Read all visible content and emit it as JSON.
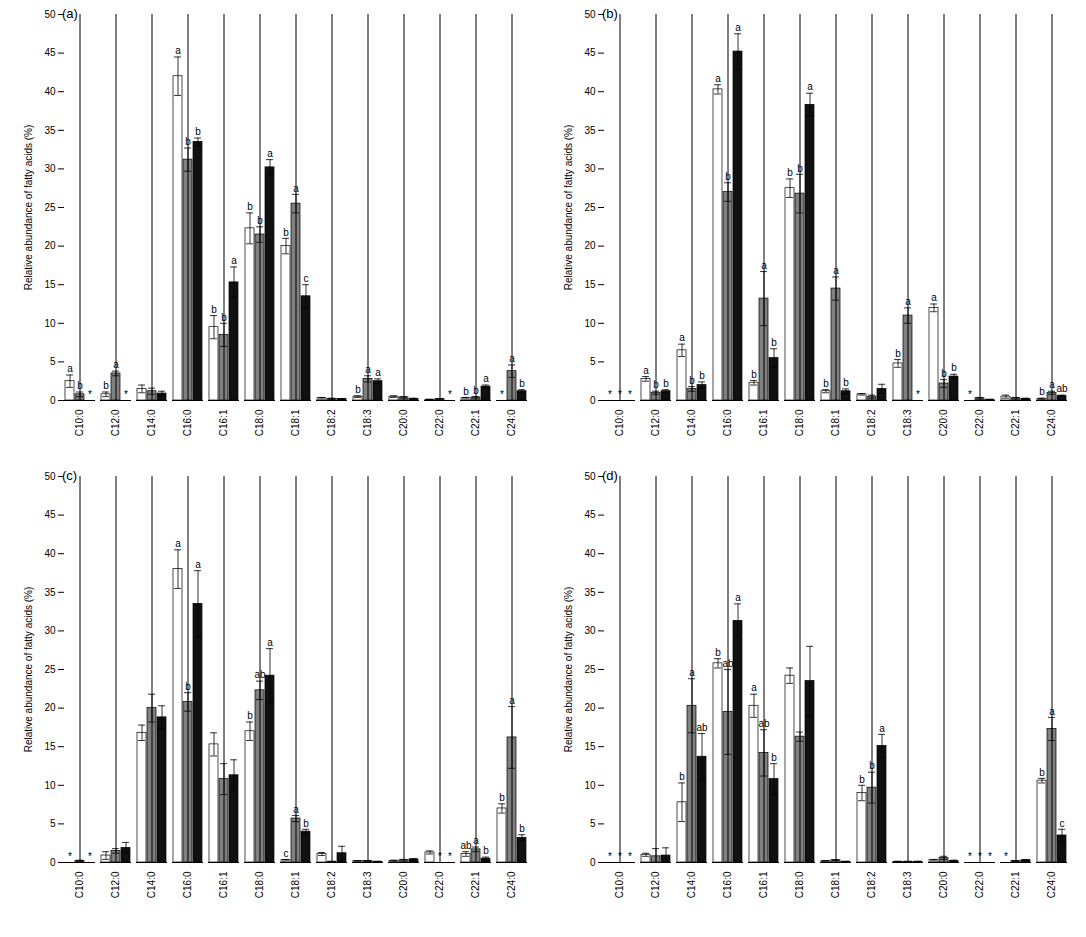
{
  "chart_data": [
    {
      "type": "bar",
      "title": "(a)",
      "y_label": "Relative abundance of fatty acids (%)",
      "categories": [
        "C10:0",
        "C12:0",
        "C14:0",
        "C16:0",
        "C16:1",
        "C18:0",
        "C18:1",
        "C18:2",
        "C18:3",
        "C20:0",
        "C22:0",
        "C22:1",
        "C24:0"
      ],
      "ylim": [
        0,
        50
      ],
      "yticks": [
        0,
        5,
        10,
        15,
        20,
        25,
        30,
        35,
        40,
        45,
        50
      ],
      "series": [
        {
          "color": "#ffffff",
          "values": [
            2.5,
            0.8,
            1.5,
            42,
            9.5,
            22.3,
            20,
            0.3,
            0.5,
            0.5,
            0.1,
            0.3,
            0
          ],
          "errors": [
            0.8,
            0.3,
            0.5,
            2.5,
            1.5,
            2,
            1,
            0.1,
            0.1,
            0.1,
            0.05,
            0.1,
            0
          ],
          "letters": [
            "a",
            "b",
            null,
            "a",
            "b",
            "b",
            "b",
            null,
            "b",
            null,
            null,
            "b",
            "*"
          ]
        },
        {
          "color": "#808080",
          "values": [
            0.8,
            3.5,
            1.2,
            31.2,
            8.5,
            21.5,
            25.5,
            0.2,
            2.8,
            0.4,
            0.2,
            0.4,
            3.8
          ],
          "errors": [
            0.3,
            0.3,
            0.4,
            1.5,
            1.5,
            1,
            1.2,
            0.1,
            0.4,
            0.1,
            0.05,
            0.1,
            0.8
          ],
          "letters": [
            "b",
            "a",
            null,
            "b",
            "b",
            "b",
            "a",
            null,
            "a",
            null,
            null,
            "b",
            "a"
          ]
        },
        {
          "color": "#111111",
          "values": [
            0,
            0,
            0.9,
            33.5,
            15.3,
            30.2,
            13.5,
            0.2,
            2.5,
            0.2,
            0,
            1.8,
            1.2
          ],
          "errors": [
            0,
            0,
            0.3,
            0.5,
            2,
            1,
            1.5,
            0.05,
            0.3,
            0.1,
            0,
            0.2,
            0.2
          ],
          "letters": [
            "*",
            "*",
            null,
            "b",
            "a",
            "a",
            "c",
            null,
            "a",
            null,
            "*",
            "a",
            "b"
          ]
        }
      ]
    },
    {
      "type": "bar",
      "title": "(b)",
      "y_label": "Relative abundance of fatty acids (%)",
      "categories": [
        "C10:0",
        "C12:0",
        "C14:0",
        "C16:0",
        "C16:1",
        "C18:0",
        "C18:1",
        "C18:2",
        "C18:3",
        "C20:0",
        "C22:0",
        "C22:1",
        "C24:0"
      ],
      "ylim": [
        0,
        50
      ],
      "yticks": [
        0,
        5,
        10,
        15,
        20,
        25,
        30,
        35,
        40,
        45,
        50
      ],
      "series": [
        {
          "color": "#ffffff",
          "values": [
            0,
            2.8,
            6.5,
            40.3,
            2.3,
            27.5,
            1.2,
            0.8,
            4.8,
            12,
            0,
            0.5,
            0.2
          ],
          "errors": [
            0,
            0.3,
            0.8,
            0.6,
            0.3,
            1.2,
            0.2,
            0.1,
            0.5,
            0.5,
            0,
            0.2,
            0.1
          ],
          "letters": [
            "*",
            "a",
            "a",
            "a",
            "b",
            "b",
            "b",
            null,
            "b",
            "a",
            "*",
            null,
            "b"
          ]
        },
        {
          "color": "#808080",
          "values": [
            0,
            1.0,
            1.5,
            27,
            13.2,
            26.8,
            14.5,
            0.5,
            11,
            2.2,
            0.3,
            0.3,
            1.0
          ],
          "errors": [
            0,
            0.2,
            0.3,
            1.2,
            3.5,
            2.5,
            1.5,
            0.2,
            1,
            0.5,
            0.1,
            0.1,
            0.2
          ],
          "letters": [
            "*",
            "b",
            "b",
            "b",
            "a",
            "b",
            "a",
            null,
            "a",
            "b",
            null,
            null,
            "a"
          ]
        },
        {
          "color": "#111111",
          "values": [
            0,
            1.2,
            2.0,
            45.2,
            5.5,
            38.3,
            1.2,
            1.5,
            0,
            3.1,
            0.1,
            0.2,
            0.6
          ],
          "errors": [
            0,
            0.2,
            0.4,
            2.3,
            1.2,
            1.5,
            0.3,
            0.6,
            0,
            0.3,
            0.05,
            0.1,
            0.1
          ],
          "letters": [
            "*",
            "b",
            "b",
            "a",
            "b",
            "a",
            "b",
            null,
            "*",
            "b",
            null,
            null,
            "ab"
          ]
        }
      ]
    },
    {
      "type": "bar",
      "title": "(c)",
      "y_label": "Relative abundance of fatty acids (%)",
      "categories": [
        "C10:0",
        "C12:0",
        "C14:0",
        "C16:0",
        "C16:1",
        "C18:0",
        "C18:1",
        "C18:2",
        "C18:3",
        "C20:0",
        "C22:0",
        "C22:1",
        "C24:0"
      ],
      "ylim": [
        0,
        50
      ],
      "yticks": [
        0,
        5,
        10,
        15,
        20,
        25,
        30,
        35,
        40,
        45,
        50
      ],
      "series": [
        {
          "color": "#ffffff",
          "values": [
            0,
            0.9,
            16.8,
            38,
            15.3,
            17,
            0.3,
            1.1,
            0.2,
            0.2,
            1.3,
            1.1,
            7
          ],
          "errors": [
            0,
            0.5,
            1,
            2.5,
            1.5,
            1.2,
            0.1,
            0.2,
            0.05,
            0.1,
            0.2,
            0.3,
            0.6
          ],
          "letters": [
            "*",
            null,
            null,
            "a",
            null,
            "b",
            "c",
            null,
            null,
            null,
            null,
            "ab",
            "b"
          ]
        },
        {
          "color": "#808080",
          "values": [
            0.2,
            1.5,
            20,
            20.8,
            10.8,
            22.3,
            5.7,
            0.1,
            0.2,
            0.3,
            0,
            1.7,
            16.2
          ],
          "errors": [
            0.1,
            0.3,
            1.8,
            1.2,
            2,
            1.2,
            0.4,
            0.05,
            0.05,
            0.1,
            0,
            0.3,
            4
          ],
          "letters": [
            null,
            null,
            null,
            "b",
            null,
            "ab",
            "a",
            null,
            null,
            null,
            "*",
            "a",
            "a"
          ]
        },
        {
          "color": "#111111",
          "values": [
            0,
            1.9,
            18.8,
            33.5,
            11.3,
            24.2,
            4,
            1.2,
            0.1,
            0.4,
            0,
            0.5,
            3.2
          ],
          "errors": [
            0,
            0.7,
            1.5,
            4.3,
            2,
            3.5,
            0.3,
            0.9,
            0.05,
            0.1,
            0,
            0.2,
            0.4
          ],
          "letters": [
            "*",
            null,
            null,
            "a",
            null,
            "a",
            "b",
            null,
            null,
            null,
            "*",
            "b",
            "b"
          ]
        }
      ]
    },
    {
      "type": "bar",
      "title": "(d)",
      "y_label": "Relative abundance of fatty acids (%)",
      "categories": [
        "C10:0",
        "C12:0",
        "C14:0",
        "C16:0",
        "C16:1",
        "C18:0",
        "C18:1",
        "C18:2",
        "C18:3",
        "C20:0",
        "C22:0",
        "C22:1",
        "C24:0"
      ],
      "ylim": [
        0,
        50
      ],
      "yticks": [
        0,
        5,
        10,
        15,
        20,
        25,
        30,
        35,
        40,
        45,
        50
      ],
      "series": [
        {
          "color": "#ffffff",
          "values": [
            0,
            1.0,
            7.8,
            25.8,
            20.3,
            24.2,
            0.2,
            9,
            0.1,
            0.3,
            0,
            0,
            10.6
          ],
          "errors": [
            0,
            0.2,
            2.5,
            0.6,
            1.5,
            1,
            0.05,
            1,
            0.05,
            0.1,
            0,
            0,
            0.3
          ],
          "letters": [
            "*",
            null,
            "b",
            "b",
            "a",
            null,
            null,
            "b",
            null,
            null,
            "*",
            "*",
            "b"
          ]
        },
        {
          "color": "#808080",
          "values": [
            0,
            0.8,
            20.3,
            19.5,
            14.2,
            16.3,
            0.3,
            9.7,
            0.1,
            0.6,
            0,
            0.2,
            17.3
          ],
          "errors": [
            0,
            1,
            3.5,
            5.5,
            3,
            0.6,
            0.05,
            2,
            0.05,
            0.2,
            0,
            0.05,
            1.5
          ],
          "letters": [
            "*",
            null,
            "a",
            "ab",
            "ab",
            null,
            null,
            "b",
            null,
            null,
            "*",
            null,
            "a"
          ]
        },
        {
          "color": "#111111",
          "values": [
            0,
            0.9,
            13.7,
            31.3,
            10.8,
            23.5,
            0.1,
            15.1,
            0.1,
            0.2,
            0,
            0.3,
            3.5
          ],
          "errors": [
            0,
            1,
            3,
            2.2,
            2,
            4.5,
            0.05,
            1.5,
            0.05,
            0.1,
            0,
            0.05,
            0.8
          ],
          "letters": [
            "*",
            null,
            "ab",
            "a",
            "b",
            null,
            null,
            "a",
            null,
            null,
            "*",
            null,
            "c"
          ]
        }
      ]
    }
  ]
}
